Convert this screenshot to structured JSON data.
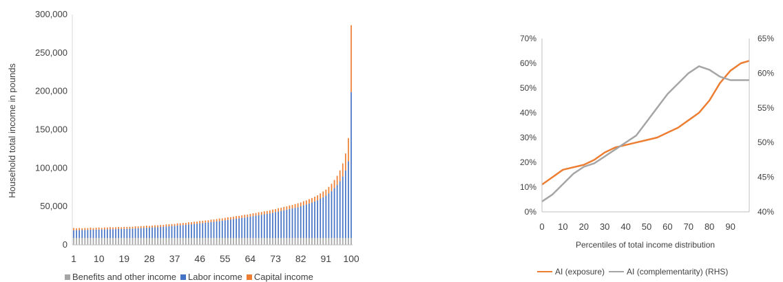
{
  "chart_data": [
    {
      "type": "bar",
      "stacked": true,
      "ylabel": "Household total income in pounds",
      "xlabel": "",
      "ylim": [
        0,
        300000
      ],
      "yticks": [
        "0",
        "50,000",
        "100,000",
        "150,000",
        "200,000",
        "250,000",
        "300,000"
      ],
      "xticks": [
        "1",
        "10",
        "19",
        "28",
        "37",
        "46",
        "55",
        "64",
        "73",
        "82",
        "91",
        "100"
      ],
      "legend_position": "bottom",
      "categories": [
        1,
        2,
        3,
        4,
        5,
        6,
        7,
        8,
        9,
        10,
        11,
        12,
        13,
        14,
        15,
        16,
        17,
        18,
        19,
        20,
        21,
        22,
        23,
        24,
        25,
        26,
        27,
        28,
        29,
        30,
        31,
        32,
        33,
        34,
        35,
        36,
        37,
        38,
        39,
        40,
        41,
        42,
        43,
        44,
        45,
        46,
        47,
        48,
        49,
        50,
        51,
        52,
        53,
        54,
        55,
        56,
        57,
        58,
        59,
        60,
        61,
        62,
        63,
        64,
        65,
        66,
        67,
        68,
        69,
        70,
        71,
        72,
        73,
        74,
        75,
        76,
        77,
        78,
        79,
        80,
        81,
        82,
        83,
        84,
        85,
        86,
        87,
        88,
        89,
        90,
        91,
        92,
        93,
        94,
        95,
        96,
        97,
        98,
        99,
        100
      ],
      "series": [
        {
          "name": "Benefits and other income",
          "color": "#a5a5a5",
          "values": [
            9000,
            9000,
            9000,
            9000,
            9000,
            9000,
            9000,
            9000,
            9000,
            9000,
            9000,
            9000,
            9000,
            9000,
            9000,
            9000,
            9000,
            9000,
            9000,
            9000,
            9000,
            9000,
            9000,
            9000,
            9000,
            9000,
            9000,
            9000,
            9000,
            9000,
            9000,
            9000,
            9000,
            9000,
            9000,
            9000,
            9000,
            9000,
            9000,
            9000,
            9000,
            9000,
            9000,
            9000,
            9000,
            9000,
            9000,
            9000,
            9000,
            9000,
            9000,
            9000,
            9000,
            9000,
            9000,
            9000,
            9000,
            9000,
            9000,
            9000,
            9000,
            9000,
            9000,
            9000,
            9000,
            9000,
            9000,
            9000,
            9000,
            9000,
            9000,
            9000,
            9000,
            9000,
            9000,
            9000,
            9000,
            9000,
            9000,
            9000,
            9000,
            9000,
            9000,
            9000,
            9000,
            9000,
            9000,
            9000,
            9000,
            9000,
            9000,
            9000,
            9000,
            9000,
            9000,
            9000,
            9000,
            9000,
            9000,
            9000
          ]
        },
        {
          "name": "Labor income",
          "color": "#4472c4",
          "values": [
            10000,
            10100,
            10200,
            10300,
            10400,
            10500,
            10600,
            10700,
            10800,
            10900,
            11000,
            11100,
            11200,
            11300,
            11400,
            11500,
            11600,
            11700,
            11800,
            11900,
            12000,
            12200,
            12400,
            12600,
            12800,
            13000,
            13200,
            13400,
            13600,
            13800,
            14000,
            14300,
            14600,
            14900,
            15200,
            15500,
            15800,
            16100,
            16400,
            16700,
            17000,
            17400,
            17800,
            18200,
            18600,
            19000,
            19400,
            19800,
            20200,
            20600,
            21000,
            21500,
            22000,
            22500,
            23000,
            23500,
            24000,
            24500,
            25000,
            25500,
            26000,
            26600,
            27200,
            27800,
            28400,
            29000,
            29600,
            30200,
            30800,
            31400,
            32000,
            32800,
            33600,
            34400,
            35200,
            36000,
            36800,
            37600,
            38400,
            39200,
            40000,
            41200,
            42400,
            43600,
            44800,
            46000,
            47500,
            49000,
            51000,
            53000,
            55000,
            58000,
            61000,
            65000,
            69000,
            74000,
            80000,
            88000,
            100000,
            190000
          ]
        },
        {
          "name": "Capital income",
          "color": "#ed7d31",
          "values": [
            3000,
            2500,
            2800,
            2300,
            2600,
            2400,
            2900,
            2200,
            2500,
            2700,
            2100,
            2600,
            2400,
            2800,
            2300,
            2500,
            2700,
            2200,
            2600,
            2400,
            2500,
            2300,
            2700,
            2400,
            2600,
            2500,
            2800,
            2300,
            2600,
            2700,
            2500,
            2600,
            2400,
            2800,
            2700,
            2600,
            2500,
            2900,
            2700,
            2800,
            2600,
            3000,
            2800,
            2900,
            2700,
            3100,
            2900,
            3000,
            2800,
            3200,
            3000,
            3100,
            3300,
            3000,
            3200,
            3400,
            3100,
            3300,
            3500,
            3200,
            3400,
            3600,
            3300,
            3500,
            3700,
            3500,
            3800,
            3600,
            3900,
            3700,
            4000,
            4200,
            3900,
            4300,
            4100,
            4500,
            4300,
            4700,
            4500,
            4900,
            5200,
            5000,
            5500,
            5300,
            5800,
            6000,
            6300,
            6500,
            7000,
            7500,
            8000,
            8500,
            9500,
            10500,
            12000,
            14000,
            17000,
            22000,
            30000,
            87000
          ]
        }
      ]
    },
    {
      "type": "line",
      "xlabel": "Percentiles of total income distribution",
      "ylabel": "",
      "xticks": [
        "0",
        "10",
        "20",
        "30",
        "40",
        "50",
        "60",
        "70",
        "80",
        "90"
      ],
      "xlim": [
        0,
        99
      ],
      "ylim_left": [
        0,
        0.7
      ],
      "ylim_right": [
        0.4,
        0.65
      ],
      "yticks_left": [
        "0%",
        "10%",
        "20%",
        "30%",
        "40%",
        "50%",
        "60%",
        "70%"
      ],
      "yticks_right": [
        "40%",
        "45%",
        "50%",
        "55%",
        "60%",
        "65%"
      ],
      "legend_position": "bottom",
      "series": [
        {
          "name": "AI (exposure)",
          "axis": "left",
          "color": "#ed7d31",
          "x": [
            0,
            5,
            10,
            15,
            20,
            25,
            30,
            35,
            40,
            45,
            50,
            55,
            60,
            65,
            70,
            75,
            80,
            85,
            90,
            95,
            99
          ],
          "y": [
            0.11,
            0.14,
            0.17,
            0.18,
            0.19,
            0.21,
            0.24,
            0.26,
            0.27,
            0.28,
            0.29,
            0.3,
            0.32,
            0.34,
            0.37,
            0.4,
            0.45,
            0.52,
            0.57,
            0.6,
            0.61
          ]
        },
        {
          "name": "AI (complementarity) (RHS)",
          "axis": "right",
          "color": "#a5a5a5",
          "x": [
            0,
            5,
            10,
            15,
            20,
            25,
            30,
            35,
            40,
            45,
            50,
            55,
            60,
            65,
            70,
            75,
            80,
            85,
            90,
            95,
            99
          ],
          "y": [
            0.415,
            0.425,
            0.44,
            0.455,
            0.465,
            0.47,
            0.48,
            0.49,
            0.5,
            0.51,
            0.53,
            0.55,
            0.57,
            0.585,
            0.6,
            0.61,
            0.605,
            0.595,
            0.59,
            0.59,
            0.59
          ]
        }
      ]
    }
  ]
}
